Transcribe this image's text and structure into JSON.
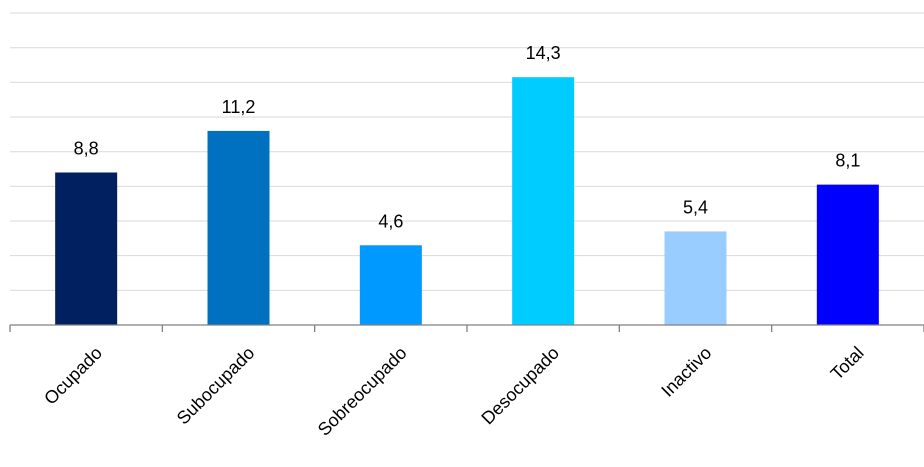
{
  "chart_data": {
    "type": "bar",
    "title": "",
    "xlabel": "",
    "ylabel": "",
    "categories": [
      "Ocupado",
      "Subocupado",
      "Sobreocupado",
      "Desocupado",
      "Inactivo",
      "Total"
    ],
    "values": [
      8.8,
      11.2,
      4.6,
      14.3,
      5.4,
      8.1
    ],
    "value_labels": [
      "8,8",
      "11,2",
      "4,6",
      "14,3",
      "5,4",
      "8,1"
    ],
    "colors": [
      "#002060",
      "#0070C0",
      "#0099FF",
      "#00CCFF",
      "#99CCFF",
      "#0000FF"
    ],
    "ylim": [
      0,
      18
    ],
    "gridline_step": 2,
    "y_axis_visible": false,
    "grid": true,
    "legend": "none"
  }
}
